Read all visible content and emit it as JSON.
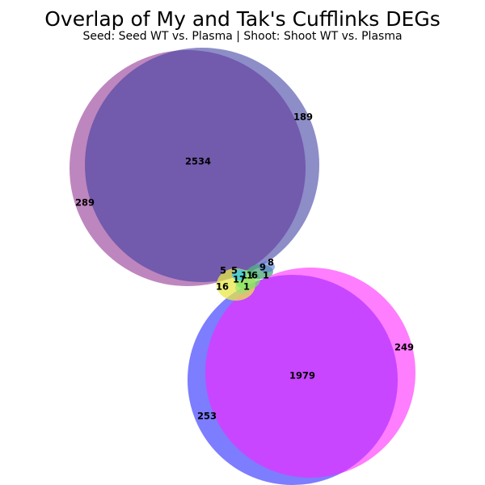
{
  "chart_data": {
    "type": "venn",
    "title": "Overlap of My and Tak's Cufflinks DEGs",
    "subtitle": "Seed: Seed WT vs. Plasma | Shoot: Shoot WT vs. Plasma",
    "sets": [
      {
        "id": "seed_a",
        "color": "#8f2e8f"
      },
      {
        "id": "seed_b",
        "color": "#3a3aa0"
      },
      {
        "id": "shoot_a",
        "color": "#1f1fff"
      },
      {
        "id": "shoot_b",
        "color": "#ff1fff"
      }
    ],
    "regions": [
      {
        "sets": [
          "seed_a",
          "seed_b"
        ],
        "value": 2534
      },
      {
        "sets": [
          "seed_b"
        ],
        "value": 189
      },
      {
        "sets": [
          "seed_a"
        ],
        "value": 289
      },
      {
        "sets": [
          "shoot_a",
          "shoot_b"
        ],
        "value": 1979
      },
      {
        "sets": [
          "shoot_b"
        ],
        "value": 249
      },
      {
        "sets": [
          "shoot_a"
        ],
        "value": 253
      },
      {
        "sets": [
          "small_1"
        ],
        "value": 5
      },
      {
        "sets": [
          "small_2"
        ],
        "value": 5
      },
      {
        "sets": [
          "small_3"
        ],
        "value": 1
      },
      {
        "sets": [
          "small_4"
        ],
        "value": 1
      },
      {
        "sets": [
          "small_5"
        ],
        "value": 6
      },
      {
        "sets": [
          "small_6"
        ],
        "value": 17
      },
      {
        "sets": [
          "small_7"
        ],
        "value": 16
      },
      {
        "sets": [
          "small_8"
        ],
        "value": 1
      },
      {
        "sets": [
          "small_9"
        ],
        "value": 9
      },
      {
        "sets": [
          "small_10"
        ],
        "value": 8
      },
      {
        "sets": [
          "small_11"
        ],
        "value": 1
      }
    ]
  }
}
